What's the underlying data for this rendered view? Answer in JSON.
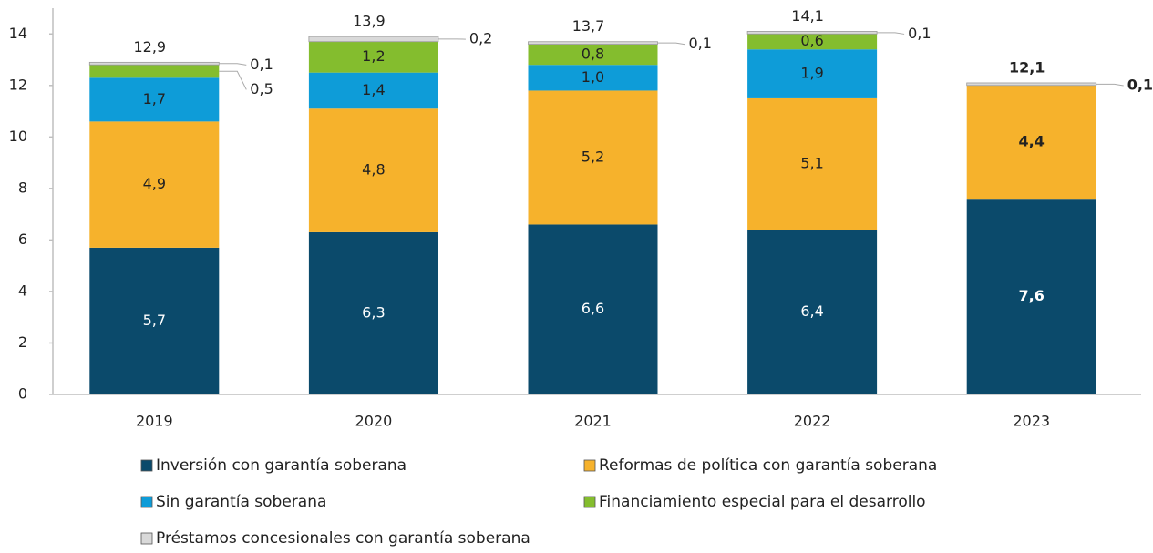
{
  "chart_data": {
    "type": "bar",
    "stacked": true,
    "categories": [
      "2019",
      "2020",
      "2021",
      "2022",
      "2023"
    ],
    "series": [
      {
        "name": "Inversión con garantía soberana",
        "color": "#0b4a6b",
        "values": [
          5.7,
          6.3,
          6.6,
          6.4,
          7.6
        ],
        "value_labels": [
          "5,7",
          "6,3",
          "6,6",
          "6,4",
          "7,6"
        ]
      },
      {
        "name": "Reformas de política con garantía soberana",
        "color": "#f6b22c",
        "values": [
          4.9,
          4.8,
          5.2,
          5.1,
          4.4
        ],
        "value_labels": [
          "4,9",
          "4,8",
          "5,2",
          "5,1",
          "4,4"
        ]
      },
      {
        "name": "Sin garantía soberana",
        "color": "#0e9cd8",
        "values": [
          1.7,
          1.4,
          1.0,
          1.9,
          null
        ],
        "value_labels": [
          "1,7",
          "1,4",
          "1,0",
          "1,9",
          null
        ]
      },
      {
        "name": "Financiamiento especial para el desarrollo",
        "color": "#84bd2e",
        "values": [
          0.5,
          1.2,
          0.8,
          0.6,
          null
        ],
        "value_labels": [
          "0,5",
          "1,2",
          "0,8",
          "0,6",
          null
        ]
      },
      {
        "name": "Préstamos concesionales con garantía soberana",
        "color": "#d9d9d9",
        "values": [
          0.1,
          0.2,
          0.1,
          0.1,
          0.1
        ],
        "value_labels": [
          "0,1",
          "0,2",
          "0,1",
          "0,1",
          "0,1"
        ]
      }
    ],
    "totals": [
      12.9,
      13.9,
      13.7,
      14.1,
      12.1
    ],
    "total_labels": [
      "12,9",
      "13,9",
      "13,7",
      "14,1",
      "12,1"
    ],
    "bold": [
      false,
      false,
      false,
      false,
      true
    ],
    "ylim": [
      0,
      15
    ],
    "yticks": [
      0,
      2,
      4,
      6,
      8,
      10,
      12,
      14
    ],
    "grid": false,
    "legend": "bottom"
  }
}
